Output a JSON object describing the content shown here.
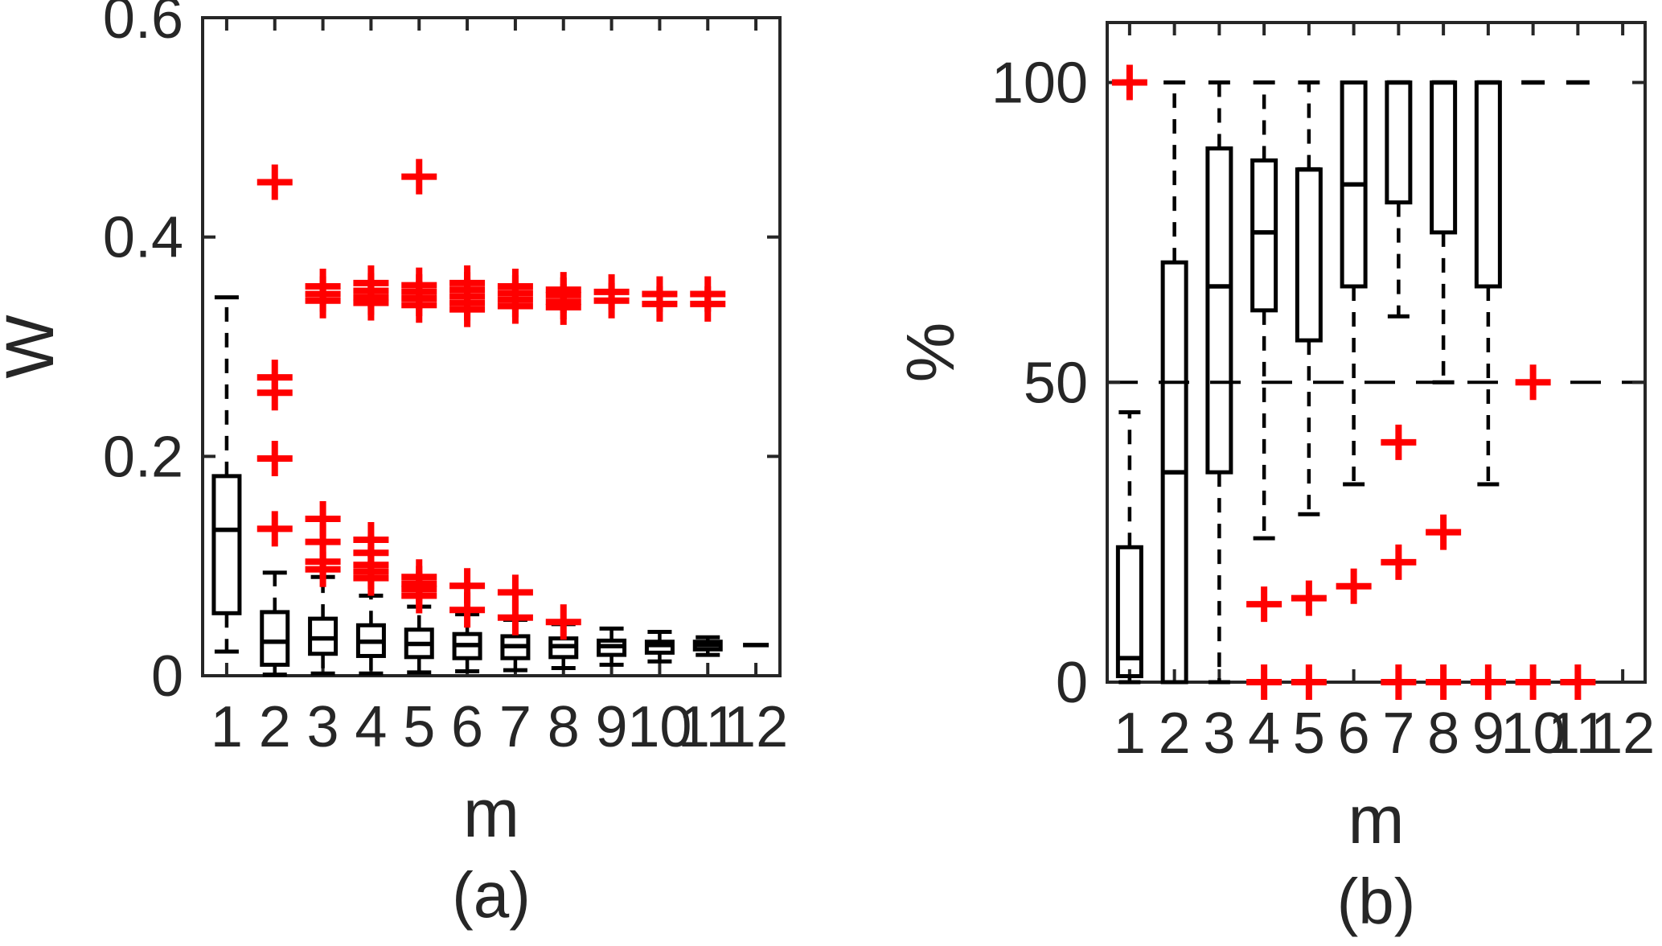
{
  "figure": {
    "background": "#ffffff",
    "text_color": "#262626",
    "axis_color": "#262626",
    "box_color": "#000000",
    "outlier_color": "#ff0000",
    "outlier_marker": "+"
  },
  "chart_data": [
    {
      "id": "a",
      "type": "boxplot",
      "caption": "(a)",
      "xlabel": "m",
      "ylabel": "W",
      "ylim": [
        0,
        0.6
      ],
      "yticks": [
        0,
        0.2,
        0.4,
        0.6
      ],
      "ytick_labels": [
        "0",
        "0.2",
        "0.4",
        "0.6"
      ],
      "categories": [
        "1",
        "2",
        "3",
        "4",
        "5",
        "6",
        "7",
        "8",
        "9",
        "10",
        "11",
        "12"
      ],
      "grid": false,
      "legend": null,
      "reference_line": null,
      "boxes": [
        {
          "m": 1,
          "whislo": 0.022,
          "q1": 0.057,
          "med": 0.133,
          "q3": 0.182,
          "whishi": 0.345,
          "outliers": []
        },
        {
          "m": 2,
          "whislo": 0.001,
          "q1": 0.01,
          "med": 0.031,
          "q3": 0.058,
          "whishi": 0.094,
          "outliers": [
            0.45,
            0.272,
            0.258,
            0.198,
            0.134
          ]
        },
        {
          "m": 3,
          "whislo": 0.002,
          "q1": 0.02,
          "med": 0.034,
          "q3": 0.052,
          "whishi": 0.09,
          "outliers": [
            0.355,
            0.348,
            0.342,
            0.143,
            0.122,
            0.104,
            0.097
          ]
        },
        {
          "m": 4,
          "whislo": 0.002,
          "q1": 0.018,
          "med": 0.031,
          "q3": 0.046,
          "whishi": 0.073,
          "outliers": [
            0.358,
            0.351,
            0.345,
            0.34,
            0.124,
            0.112,
            0.101,
            0.095,
            0.089
          ]
        },
        {
          "m": 5,
          "whislo": 0.003,
          "q1": 0.017,
          "med": 0.029,
          "q3": 0.042,
          "whishi": 0.063,
          "outliers": [
            0.455,
            0.356,
            0.35,
            0.344,
            0.338,
            0.09,
            0.084,
            0.079,
            0.073
          ]
        },
        {
          "m": 6,
          "whislo": 0.004,
          "q1": 0.016,
          "med": 0.028,
          "q3": 0.038,
          "whishi": 0.056,
          "outliers": [
            0.358,
            0.352,
            0.346,
            0.34,
            0.334,
            0.082,
            0.06
          ]
        },
        {
          "m": 7,
          "whislo": 0.005,
          "q1": 0.016,
          "med": 0.027,
          "q3": 0.036,
          "whishi": 0.051,
          "outliers": [
            0.355,
            0.349,
            0.343,
            0.337,
            0.076,
            0.053
          ]
        },
        {
          "m": 8,
          "whislo": 0.007,
          "q1": 0.017,
          "med": 0.027,
          "q3": 0.034,
          "whishi": 0.047,
          "outliers": [
            0.352,
            0.347,
            0.341,
            0.336,
            0.049
          ]
        },
        {
          "m": 9,
          "whislo": 0.01,
          "q1": 0.019,
          "med": 0.027,
          "q3": 0.032,
          "whishi": 0.043,
          "outliers": [
            0.35,
            0.342
          ]
        },
        {
          "m": 10,
          "whislo": 0.013,
          "q1": 0.021,
          "med": 0.028,
          "q3": 0.031,
          "whishi": 0.04,
          "outliers": [
            0.348,
            0.339
          ]
        },
        {
          "m": 11,
          "whislo": 0.019,
          "q1": 0.024,
          "med": 0.028,
          "q3": 0.031,
          "whishi": 0.035,
          "outliers": [
            0.348,
            0.339
          ]
        },
        {
          "m": 12,
          "whislo": 0.028,
          "q1": 0.028,
          "med": 0.028,
          "q3": 0.028,
          "whishi": 0.028,
          "outliers": []
        }
      ]
    },
    {
      "id": "b",
      "type": "boxplot",
      "caption": "(b)",
      "xlabel": "m",
      "ylabel": "%",
      "ylim": [
        0,
        110
      ],
      "yticks": [
        0,
        50,
        100
      ],
      "ytick_labels": [
        "0",
        "50",
        "100"
      ],
      "categories": [
        "1",
        "2",
        "3",
        "4",
        "5",
        "6",
        "7",
        "8",
        "9",
        "10",
        "11",
        "12"
      ],
      "grid": false,
      "legend": null,
      "reference_line": {
        "y": 50,
        "style": "dashed",
        "color": "#000000"
      },
      "boxes": [
        {
          "m": 1,
          "whislo": 0,
          "q1": 1,
          "med": 4,
          "q3": 22.5,
          "whishi": 45,
          "outliers": [
            100
          ]
        },
        {
          "m": 2,
          "whislo": 0,
          "q1": 0,
          "med": 35,
          "q3": 70,
          "whishi": 100,
          "outliers": []
        },
        {
          "m": 3,
          "whislo": 0,
          "q1": 35,
          "med": 66,
          "q3": 89,
          "whishi": 100,
          "outliers": []
        },
        {
          "m": 4,
          "whislo": 24,
          "q1": 62,
          "med": 75,
          "q3": 87,
          "whishi": 100,
          "outliers": [
            13,
            0
          ]
        },
        {
          "m": 5,
          "whislo": 28,
          "q1": 57,
          "med": 85.5,
          "q3": 85.5,
          "whishi": 100,
          "outliers": [
            14,
            0
          ]
        },
        {
          "m": 6,
          "whislo": 33,
          "q1": 66,
          "med": 83,
          "q3": 100,
          "whishi": 100,
          "outliers": [
            16
          ]
        },
        {
          "m": 7,
          "whislo": 61,
          "q1": 80,
          "med": 100,
          "q3": 100,
          "whishi": 100,
          "outliers": [
            40,
            20,
            0
          ]
        },
        {
          "m": 8,
          "whislo": 50,
          "q1": 75,
          "med": 100,
          "q3": 100,
          "whishi": 100,
          "outliers": [
            25,
            0
          ]
        },
        {
          "m": 9,
          "whislo": 33,
          "q1": 66,
          "med": 100,
          "q3": 100,
          "whishi": 100,
          "outliers": [
            0
          ]
        },
        {
          "m": 10,
          "whislo": 100,
          "q1": 100,
          "med": 100,
          "q3": 100,
          "whishi": 100,
          "outliers": [
            50,
            0
          ]
        },
        {
          "m": 11,
          "whislo": 100,
          "q1": 100,
          "med": 100,
          "q3": 100,
          "whishi": 100,
          "outliers": [
            0
          ]
        },
        {
          "m": 12,
          "whislo": null,
          "q1": null,
          "med": null,
          "q3": null,
          "whishi": null,
          "outliers": []
        }
      ]
    }
  ]
}
